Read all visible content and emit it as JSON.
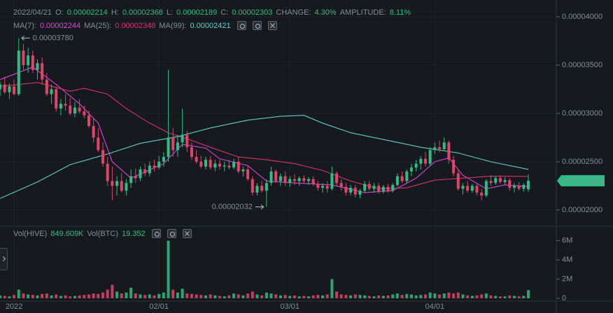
{
  "chart_data": {
    "type": "candlestick",
    "header": {
      "date": "2022/04/21",
      "items": [
        {
          "label": "O:",
          "value": "0.00002214"
        },
        {
          "label": "H:",
          "value": "0.00002368"
        },
        {
          "label": "L:",
          "value": "0.00002189"
        },
        {
          "label": "C:",
          "value": "0.00002303"
        },
        {
          "label": "CHANGE:",
          "value": "4.30%"
        },
        {
          "label": "AMPLITUDE:",
          "value": "8.11%"
        }
      ]
    },
    "volume_legend": [
      {
        "label": "Vol(HIVE)",
        "value": "849.609K"
      },
      {
        "label": "Vol(BTC)",
        "value": "19.352"
      }
    ],
    "up_color": "#2ebd85",
    "down_color": "#e0446b",
    "grid": true,
    "xticks": [
      {
        "value": 3,
        "label": "2022"
      },
      {
        "value": 34,
        "label": "02/01"
      },
      {
        "value": 62,
        "label": "03/01"
      },
      {
        "value": 93,
        "label": "04/01"
      }
    ],
    "xlim": [
      0,
      119
    ],
    "ylim": [
      1.84e-05,
      4.138e-05
    ],
    "yticks": [
      {
        "value": 2e-05,
        "label": "0.00002000"
      },
      {
        "value": 2.5e-05,
        "label": "0.00002500"
      },
      {
        "value": 3e-05,
        "label": "0.00003000"
      },
      {
        "value": 3.5e-05,
        "label": "0.00003500"
      },
      {
        "value": 4e-05,
        "label": "0.00004000"
      }
    ],
    "candles": {
      "open": [
        3.25e-05,
        3.3e-05,
        3.22e-05,
        3.28e-05,
        3.2e-05,
        3.65e-05,
        3.5e-05,
        3.6e-05,
        3.45e-05,
        3.52e-05,
        3.35e-05,
        3.2e-05,
        3.25e-05,
        3.05e-05,
        3.1e-05,
        3.08e-05,
        3e-05,
        3.06e-05,
        3.02e-05,
        2.98e-05,
        2.87e-05,
        2.75e-05,
        2.62e-05,
        2.48e-05,
        2.3e-05,
        2.25e-05,
        2.3e-05,
        2.2e-05,
        2.28e-05,
        2.35e-05,
        2.33e-05,
        2.42e-05,
        2.38e-05,
        2.46e-05,
        2.44e-05,
        2.5e-05,
        2.55e-05,
        2.75e-05,
        2.62e-05,
        2.7e-05,
        2.78e-05,
        2.65e-05,
        2.55e-05,
        2.5e-05,
        2.45e-05,
        2.52e-05,
        2.44e-05,
        2.48e-05,
        2.45e-05,
        2.46e-05,
        2.44e-05,
        2.5e-05,
        2.4e-05,
        2.42e-05,
        2.32e-05,
        2.18e-05,
        2.25e-05,
        2.2e-05,
        2.28e-05,
        2.4e-05,
        2.3e-05,
        2.35e-05,
        2.28e-05,
        2.32e-05,
        2.3e-05,
        2.33e-05,
        2.3e-05,
        2.32e-05,
        2.27e-05,
        2.23e-05,
        2.25e-05,
        2.22e-05,
        2.38e-05,
        2.28e-05,
        2.24e-05,
        2.18e-05,
        2.23e-05,
        2.16e-05,
        2.2e-05,
        2.27e-05,
        2.22e-05,
        2.25e-05,
        2.19e-05,
        2.24e-05,
        2.2e-05,
        2.26e-05,
        2.35e-05,
        2.3e-05,
        2.4e-05,
        2.44e-05,
        2.48e-05,
        2.53e-05,
        2.48e-05,
        2.62e-05,
        2.65e-05,
        2.63e-05,
        2.7e-05,
        2.52e-05,
        2.38e-05,
        2.22e-05,
        2.25e-05,
        2.2e-05,
        2.25e-05,
        2.18e-05,
        2.15e-05,
        2.3e-05,
        2.28e-05,
        2.33e-05,
        2.29e-05,
        2.31e-05,
        2.23e-05,
        2.25e-05,
        2.22e-05,
        2.214e-05
      ],
      "high": [
        3.33e-05,
        3.38e-05,
        3.31e-05,
        3.35e-05,
        3.78e-05,
        3.72e-05,
        3.68e-05,
        3.65e-05,
        3.56e-05,
        3.58e-05,
        3.42e-05,
        3.3e-05,
        3.28e-05,
        3.15e-05,
        3.2e-05,
        3.16e-05,
        3.12e-05,
        3.15e-05,
        3.08e-05,
        3.03e-05,
        2.95e-05,
        2.85e-05,
        2.7e-05,
        2.55e-05,
        2.45e-05,
        2.35e-05,
        2.38e-05,
        2.32e-05,
        2.42e-05,
        2.43e-05,
        2.45e-05,
        2.48e-05,
        2.5e-05,
        2.52e-05,
        2.56e-05,
        2.6e-05,
        3.45e-05,
        2.85e-05,
        2.78e-05,
        3.05e-05,
        2.82e-05,
        2.7e-05,
        2.62e-05,
        2.56e-05,
        2.55e-05,
        2.56e-05,
        2.52e-05,
        2.52e-05,
        2.5e-05,
        2.52e-05,
        2.53e-05,
        2.55e-05,
        2.45e-05,
        2.46e-05,
        2.35e-05,
        2.28e-05,
        2.3e-05,
        2.32e-05,
        2.45e-05,
        2.42e-05,
        2.38e-05,
        2.4e-05,
        2.35e-05,
        2.37e-05,
        2.35e-05,
        2.36e-05,
        2.34e-05,
        2.35e-05,
        2.3e-05,
        2.28e-05,
        2.3e-05,
        2.45e-05,
        2.4e-05,
        2.32e-05,
        2.28e-05,
        2.26e-05,
        2.26e-05,
        2.22e-05,
        2.3e-05,
        2.3e-05,
        2.28e-05,
        2.28e-05,
        2.26e-05,
        2.27e-05,
        2.28e-05,
        2.38e-05,
        2.4e-05,
        2.42e-05,
        2.48e-05,
        2.52e-05,
        2.56e-05,
        2.6e-05,
        2.65e-05,
        2.7e-05,
        2.72e-05,
        2.75e-05,
        2.72e-05,
        2.56e-05,
        2.42e-05,
        2.28e-05,
        2.3e-05,
        2.27e-05,
        2.28e-05,
        2.22e-05,
        2.32e-05,
        2.36e-05,
        2.35e-05,
        2.36e-05,
        2.34e-05,
        2.33e-05,
        2.28e-05,
        2.29e-05,
        2.28e-05,
        2.368e-05
      ],
      "low": [
        3.18e-05,
        3.2e-05,
        3.15e-05,
        3.19e-05,
        3.18e-05,
        3.45e-05,
        3.42e-05,
        3.42e-05,
        3.35e-05,
        3.3e-05,
        3.18e-05,
        3.1e-05,
        3.02e-05,
        2.98e-05,
        3.03e-05,
        2.98e-05,
        2.96e-05,
        3e-05,
        2.95e-05,
        2.85e-05,
        2.7e-05,
        2.6e-05,
        2.45e-05,
        2.25e-05,
        2.1e-05,
        2.15e-05,
        2.18e-05,
        2.15e-05,
        2.23e-05,
        2.28e-05,
        2.3e-05,
        2.35e-05,
        2.35e-05,
        2.4e-05,
        2.42e-05,
        2.45e-05,
        2.5e-05,
        2.55e-05,
        2.55e-05,
        2.65e-05,
        2.6e-05,
        2.52e-05,
        2.48e-05,
        2.43e-05,
        2.42e-05,
        2.42e-05,
        2.4e-05,
        2.42e-05,
        2.4e-05,
        2.42e-05,
        2.42e-05,
        2.38e-05,
        2.35e-05,
        2.3e-05,
        2.15e-05,
        2.15e-05,
        2.18e-05,
        2.032e-05,
        2.25e-05,
        2.28e-05,
        2.25e-05,
        2.25e-05,
        2.24e-05,
        2.26e-05,
        2.25e-05,
        2.28e-05,
        2.26e-05,
        2.25e-05,
        2.2e-05,
        2.18e-05,
        2.18e-05,
        2.2e-05,
        2.25e-05,
        2.2e-05,
        2.15e-05,
        2.15e-05,
        2.13e-05,
        2.12e-05,
        2.18e-05,
        2.2e-05,
        2.18e-05,
        2.17e-05,
        2.17e-05,
        2.18e-05,
        2.18e-05,
        2.24e-05,
        2.28e-05,
        2.28e-05,
        2.35e-05,
        2.4e-05,
        2.42e-05,
        2.45e-05,
        2.46e-05,
        2.58e-05,
        2.6e-05,
        2.62e-05,
        2.48e-05,
        2.35e-05,
        2.2e-05,
        2.16e-05,
        2.18e-05,
        2.18e-05,
        2.15e-05,
        2.1e-05,
        2.13e-05,
        2.25e-05,
        2.26e-05,
        2.27e-05,
        2.26e-05,
        2.2e-05,
        2.18e-05,
        2.2e-05,
        2.19e-05,
        2.189e-05
      ],
      "close": [
        3.3e-05,
        3.22e-05,
        3.28e-05,
        3.2e-05,
        3.65e-05,
        3.5e-05,
        3.6e-05,
        3.45e-05,
        3.52e-05,
        3.35e-05,
        3.2e-05,
        3.25e-05,
        3.05e-05,
        3.1e-05,
        3.08e-05,
        3e-05,
        3.06e-05,
        3.02e-05,
        2.98e-05,
        2.87e-05,
        2.75e-05,
        2.62e-05,
        2.48e-05,
        2.3e-05,
        2.25e-05,
        2.3e-05,
        2.2e-05,
        2.28e-05,
        2.35e-05,
        2.33e-05,
        2.42e-05,
        2.38e-05,
        2.46e-05,
        2.44e-05,
        2.5e-05,
        2.55e-05,
        2.75e-05,
        2.62e-05,
        2.7e-05,
        2.78e-05,
        2.65e-05,
        2.55e-05,
        2.5e-05,
        2.45e-05,
        2.52e-05,
        2.44e-05,
        2.48e-05,
        2.45e-05,
        2.46e-05,
        2.44e-05,
        2.5e-05,
        2.4e-05,
        2.42e-05,
        2.32e-05,
        2.18e-05,
        2.25e-05,
        2.2e-05,
        2.28e-05,
        2.4e-05,
        2.3e-05,
        2.35e-05,
        2.28e-05,
        2.32e-05,
        2.3e-05,
        2.33e-05,
        2.3e-05,
        2.32e-05,
        2.27e-05,
        2.23e-05,
        2.25e-05,
        2.22e-05,
        2.38e-05,
        2.28e-05,
        2.24e-05,
        2.18e-05,
        2.23e-05,
        2.16e-05,
        2.2e-05,
        2.27e-05,
        2.22e-05,
        2.25e-05,
        2.19e-05,
        2.24e-05,
        2.2e-05,
        2.26e-05,
        2.35e-05,
        2.3e-05,
        2.4e-05,
        2.44e-05,
        2.48e-05,
        2.53e-05,
        2.48e-05,
        2.62e-05,
        2.65e-05,
        2.63e-05,
        2.7e-05,
        2.52e-05,
        2.38e-05,
        2.22e-05,
        2.25e-05,
        2.2e-05,
        2.25e-05,
        2.18e-05,
        2.15e-05,
        2.3e-05,
        2.28e-05,
        2.33e-05,
        2.29e-05,
        2.31e-05,
        2.23e-05,
        2.25e-05,
        2.22e-05,
        2.26e-05,
        2.303e-05
      ]
    },
    "volume": {
      "values": [
        300000,
        250000,
        200000,
        350000,
        900000,
        500000,
        400000,
        350000,
        300000,
        450000,
        500000,
        300000,
        400000,
        250000,
        300000,
        200000,
        250000,
        300000,
        350000,
        400000,
        500000,
        450000,
        600000,
        900000,
        1400000,
        700000,
        500000,
        600000,
        1100000,
        500000,
        400000,
        350000,
        400000,
        300000,
        450000,
        600000,
        6000000,
        900000,
        600000,
        1000000,
        500000,
        450000,
        400000,
        350000,
        300000,
        400000,
        300000,
        250000,
        200000,
        300000,
        500000,
        400000,
        300000,
        500000,
        700000,
        400000,
        300000,
        600000,
        500000,
        400000,
        300000,
        350000,
        250000,
        300000,
        200000,
        250000,
        200000,
        300000,
        350000,
        300000,
        400000,
        2000000,
        700000,
        400000,
        350000,
        300000,
        400000,
        350000,
        300000,
        250000,
        200000,
        300000,
        250000,
        300000,
        400000,
        500000,
        350000,
        450000,
        400000,
        300000,
        350000,
        400000,
        600000,
        500000,
        400000,
        500000,
        600000,
        500000,
        600000,
        400000,
        300000,
        250000,
        300000,
        400000,
        500000,
        300000,
        250000,
        200000,
        200000,
        300000,
        250000,
        200000,
        250000,
        849609
      ],
      "ylim": [
        0,
        7000000
      ],
      "yticks": [
        0,
        {
          "value": 2000000,
          "label": "2M"
        },
        {
          "value": 4000000,
          "label": "4M"
        },
        {
          "value": 6000000,
          "label": "6M"
        }
      ]
    },
    "ma": [
      {
        "name": "MA(7):",
        "current": "0.00002244",
        "color": "#e040e0",
        "x": [
          0,
          7,
          12,
          17,
          21,
          24,
          28,
          35,
          39,
          44,
          47,
          53,
          57,
          63,
          71,
          78,
          84,
          89,
          93,
          96,
          99,
          104,
          108,
          113
        ],
        "values": [
          3.35e-05,
          3.48e-05,
          3.3e-05,
          3.1e-05,
          2.9e-05,
          2.5e-05,
          2.33e-05,
          2.48e-05,
          2.68e-05,
          2.64e-05,
          2.53e-05,
          2.46e-05,
          2.3e-05,
          2.28e-05,
          2.26e-05,
          2.18e-05,
          2.2e-05,
          2.33e-05,
          2.5e-05,
          2.54e-05,
          2.36e-05,
          2.22e-05,
          2.26e-05,
          2.244e-05
        ]
      },
      {
        "name": "MA(25):",
        "current": "0.00002348",
        "color": "#d6336c",
        "x": [
          0,
          8,
          15,
          18,
          23,
          27,
          32,
          36,
          41,
          45,
          51,
          57,
          63,
          69,
          75,
          81,
          87,
          93,
          99,
          105,
          113
        ],
        "values": [
          3.28e-05,
          3.32e-05,
          3.23e-05,
          3.26e-05,
          3.2e-05,
          3.05e-05,
          2.9e-05,
          2.8e-05,
          2.72e-05,
          2.65e-05,
          2.55e-05,
          2.52e-05,
          2.48e-05,
          2.41e-05,
          2.3e-05,
          2.22e-05,
          2.23e-05,
          2.31e-05,
          2.33e-05,
          2.35e-05,
          2.348e-05
        ]
      },
      {
        "name": "MA(99):",
        "current": "0.00002421",
        "color": "#5ad1c9",
        "x": [
          0,
          8,
          15,
          23,
          30,
          38,
          45,
          53,
          60,
          65,
          69,
          75,
          83,
          90,
          98,
          105,
          113
        ],
        "values": [
          2.12e-05,
          2.29e-05,
          2.47e-05,
          2.58e-05,
          2.69e-05,
          2.76e-05,
          2.85e-05,
          2.93e-05,
          2.97e-05,
          2.98e-05,
          2.9e-05,
          2.8e-05,
          2.72e-05,
          2.65e-05,
          2.59e-05,
          2.5e-05,
          2.421e-05
        ]
      }
    ],
    "annotations": {
      "high": "0.00003780",
      "low": "0.00002032",
      "last_price": "0.00002303"
    }
  }
}
